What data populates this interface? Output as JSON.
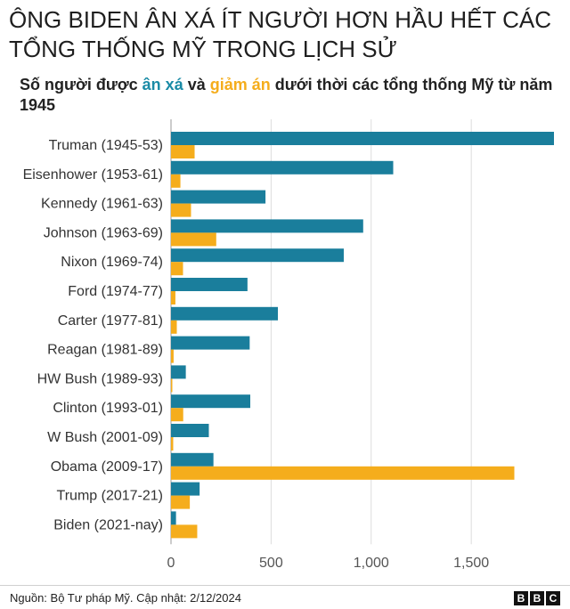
{
  "header": {
    "title": "ÔNG BIDEN ÂN XÁ ÍT NGƯỜI HƠN HẦU HẾT CÁC TỔNG THỐNG MỸ TRONG LỊCH SỬ",
    "subtitle_parts": [
      "Số người được ",
      "ân xá",
      " và ",
      "giảm án",
      " dưới thời các tổng thống Mỹ từ năm 1945"
    ]
  },
  "chart_data": {
    "type": "bar",
    "orientation": "horizontal",
    "categories": [
      "Truman (1945-53)",
      "Eisenhower (1953-61)",
      "Kennedy (1961-63)",
      "Johnson (1963-69)",
      "Nixon (1969-74)",
      "Ford (1974-77)",
      "Carter (1977-81)",
      "Reagan (1981-89)",
      "HW Bush (1989-93)",
      "Clinton (1993-01)",
      "W Bush (2001-09)",
      "Obama (2009-17)",
      "Trump (2017-21)",
      "Biden (2021-nay)"
    ],
    "series": [
      {
        "name": "ân xá",
        "color": "#1a7e9c",
        "values": [
          1913,
          1110,
          472,
          960,
          863,
          382,
          534,
          393,
          74,
          396,
          189,
          212,
          143,
          25
        ]
      },
      {
        "name": "giảm án",
        "color": "#f5ad1c",
        "values": [
          118,
          47,
          100,
          226,
          60,
          22,
          29,
          13,
          3,
          61,
          11,
          1715,
          94,
          131
        ]
      }
    ],
    "xticks": [
      "0",
      "500",
      "1,000",
      "1,500"
    ],
    "xtick_values": [
      0,
      500,
      1000,
      1500
    ],
    "xlim": [
      0,
      1913
    ],
    "grid": true
  },
  "footer": {
    "source": "Nguồn: Bộ Tư pháp Mỹ. Cập nhật: 2/12/2024",
    "logo": [
      "B",
      "B",
      "C"
    ]
  }
}
